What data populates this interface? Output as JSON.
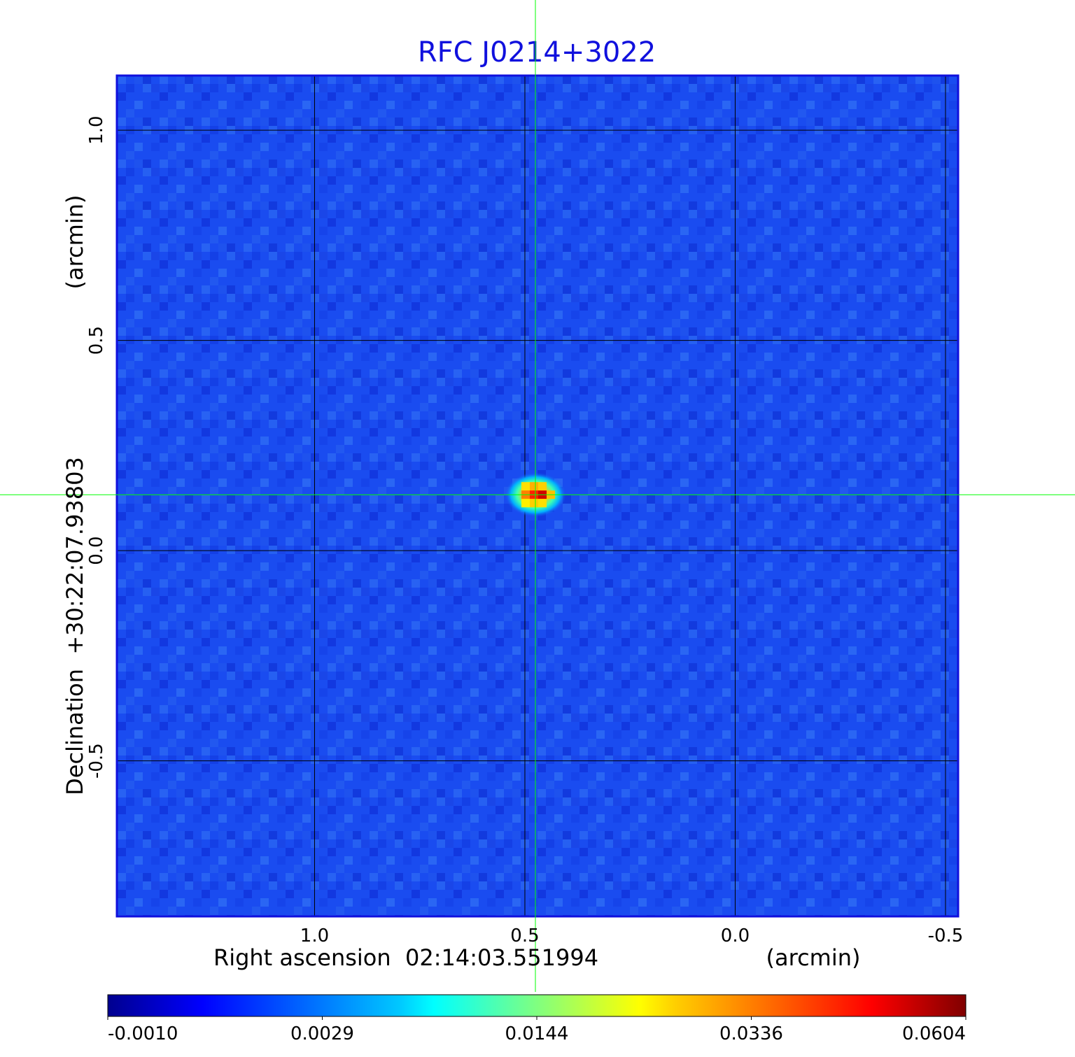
{
  "chart_data": {
    "type": "heatmap",
    "title": "RFC J0214+3022",
    "xlabel": "Right ascension  02:14:03.551994",
    "xunit": "(arcmin)",
    "ylabel": "Declination  +30:22:07.93803",
    "yunit": "(arcmin)",
    "xlim": [
      1.47,
      -0.53
    ],
    "ylim": [
      -0.87,
      1.13
    ],
    "x_ticks": [
      {
        "value": 1.0,
        "label": "1.0"
      },
      {
        "value": 0.5,
        "label": "0.5"
      },
      {
        "value": 0.0,
        "label": "0.0"
      },
      {
        "value": -0.5,
        "label": "-0.5"
      }
    ],
    "y_ticks": [
      {
        "value": 1.0,
        "label": "1.0"
      },
      {
        "value": 0.5,
        "label": "0.5"
      },
      {
        "value": 0.0,
        "label": "0.0"
      },
      {
        "value": -0.5,
        "label": "-0.5"
      }
    ],
    "grid": true,
    "crosshair": {
      "x": 0.475,
      "y": 0.133,
      "color": "#00ff00"
    },
    "source": {
      "x": 0.475,
      "y": 0.133,
      "peak": 0.0604
    },
    "background_level": 0.0005,
    "colorbar": {
      "ticks": [
        "-0.0010",
        "0.0029",
        "0.0144",
        "0.0336",
        "0.0604"
      ],
      "colormap": "jet"
    },
    "colors": {
      "title": "#1010dd",
      "grid": "#000000",
      "background_field": "#1a4cf0"
    }
  }
}
